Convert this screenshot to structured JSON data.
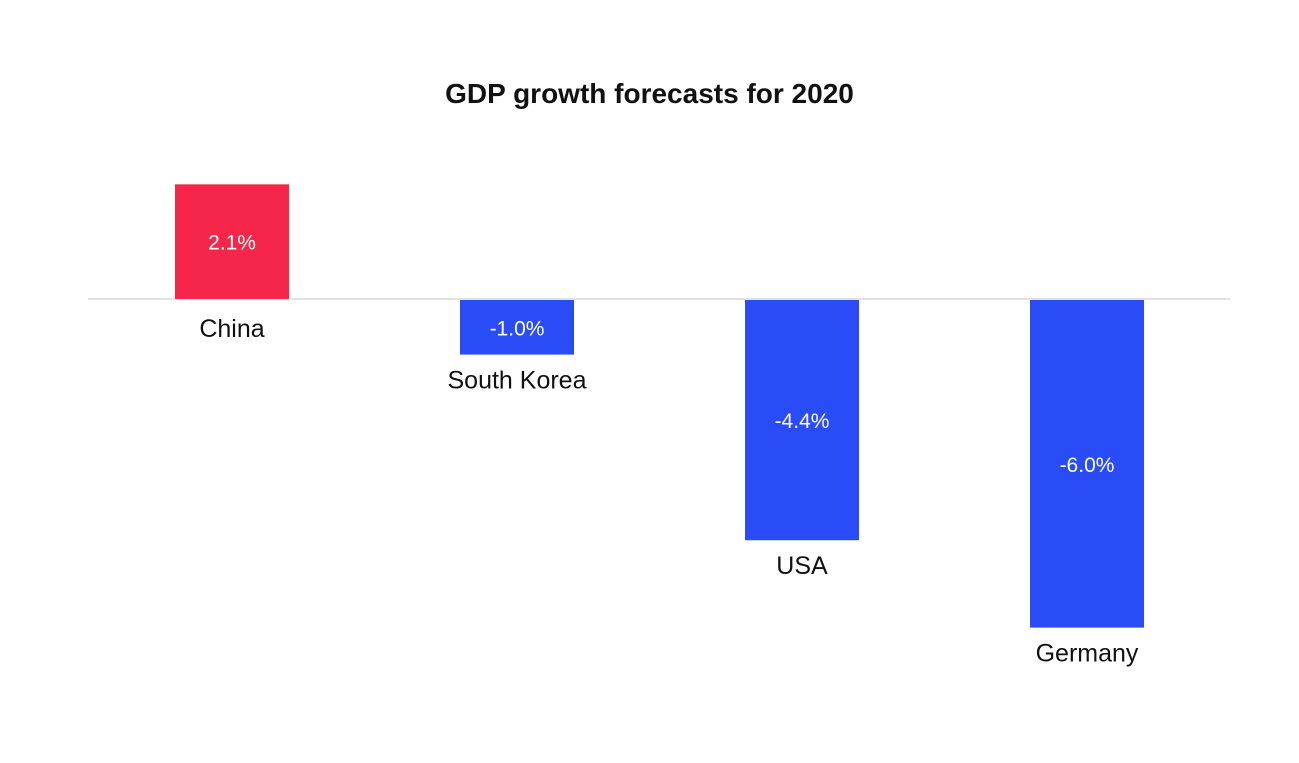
{
  "chart_data": {
    "type": "bar",
    "title": "GDP growth forecasts for 2020",
    "categories": [
      "China",
      "South Korea",
      "USA",
      "Germany"
    ],
    "values": [
      2.1,
      -1.0,
      -4.4,
      -6.0
    ],
    "value_labels": [
      "2.1%",
      "-1.0%",
      "-4.4%",
      "-6.0%"
    ],
    "colors": [
      "#f5264a",
      "#2a4cf7",
      "#2a4cf7",
      "#2a4cf7"
    ],
    "xlabel": "",
    "ylabel": "",
    "ylim": [
      -6.0,
      2.1
    ],
    "grid": false,
    "legend": "none"
  }
}
